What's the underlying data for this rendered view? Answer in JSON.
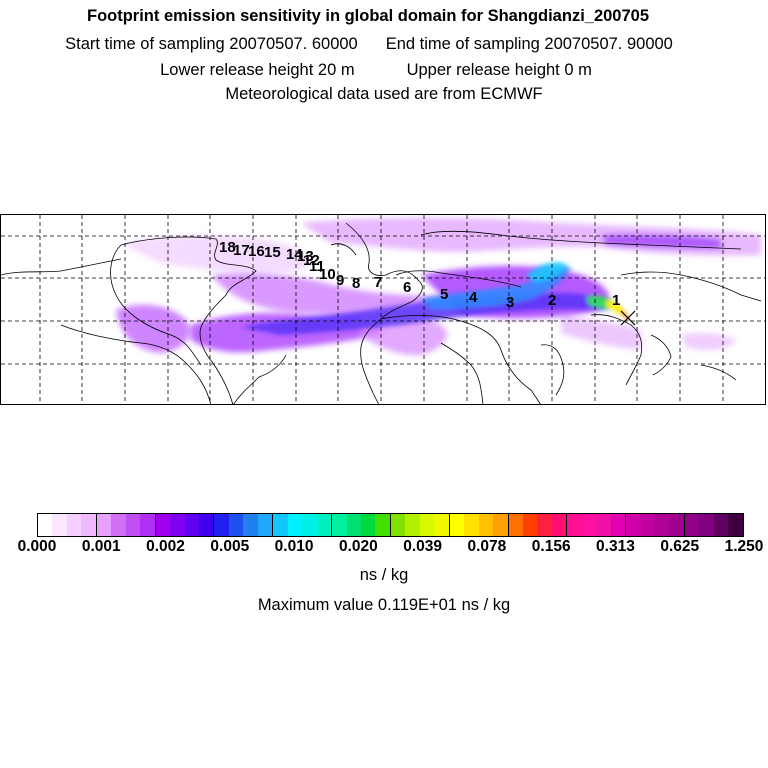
{
  "header": {
    "title": "Footprint emission sensitivity in global domain for Shangdianzi_200705",
    "start_label": "Start time of sampling 20070507. 60000",
    "end_label": "End time of sampling 20070507. 90000",
    "lower_label": "Lower release height   20 m",
    "upper_label": "Upper release height    0 m",
    "met_label": "Meteorological data used are from ECMWF"
  },
  "map": {
    "day_labels": [
      "1",
      "2",
      "3",
      "4",
      "5",
      "6",
      "7",
      "8",
      "9",
      "10",
      "11",
      "12",
      "13",
      "14",
      "15",
      "16",
      "17",
      "18"
    ]
  },
  "colorbar": {
    "colors": [
      "#ffffff",
      "#fbe7ff",
      "#f5d0ff",
      "#efb8ff",
      "#e9a0ff",
      "#d070f5",
      "#c050f5",
      "#b030f5",
      "#a000f0",
      "#8000f0",
      "#6000f0",
      "#4000f0",
      "#2020f0",
      "#2050f0",
      "#2080f0",
      "#20a8f8",
      "#10c8ff",
      "#00f0ff",
      "#00f0e8",
      "#00f0c0",
      "#00f0a0",
      "#00e070",
      "#00d840",
      "#40e000",
      "#80e000",
      "#b0f000",
      "#d8f800",
      "#f0f800",
      "#ffff00",
      "#ffe000",
      "#ffc000",
      "#ffa000",
      "#ff7000",
      "#ff4000",
      "#ff2040",
      "#ff1070",
      "#ff1090",
      "#ff10a0",
      "#f010a8",
      "#e000b0",
      "#d000a8",
      "#c000a0",
      "#b00098",
      "#a00090",
      "#900088",
      "#800080",
      "#600060",
      "#400040"
    ],
    "ticks": [
      "0.000",
      "0.001",
      "0.002",
      "0.005",
      "0.010",
      "0.020",
      "0.039",
      "0.078",
      "0.156",
      "0.313",
      "0.625",
      "1.250"
    ],
    "unit": "ns / kg",
    "max_label": "Maximum value  0.119E+01 ns / kg"
  }
}
